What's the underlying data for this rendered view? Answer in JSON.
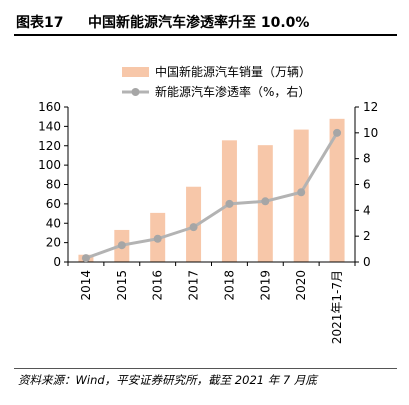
{
  "figure": {
    "label": "图表17",
    "title": "中国新能源汽车渗透率升至 10.0%",
    "source": "资料来源：Wind，平安证券研究所，截至 2021 年 7 月底"
  },
  "colors": {
    "bar": "#f7c7a9",
    "line": "#b3b3b3",
    "marker": "#a6a6a6",
    "axis": "#000000"
  },
  "chart_data": {
    "type": "bar+line",
    "categories": [
      "2014",
      "2015",
      "2016",
      "2017",
      "2018",
      "2019",
      "2020",
      "2021年1-7月"
    ],
    "series": [
      {
        "name": "中国新能源汽车销量（万辆）",
        "type": "bar",
        "axis": "left",
        "values": [
          7.5,
          33.1,
          50.7,
          77.7,
          125.6,
          120.6,
          136.7,
          147.8
        ]
      },
      {
        "name": "新能源汽车渗透率（%，右）",
        "type": "line",
        "axis": "right",
        "values": [
          0.3,
          1.3,
          1.8,
          2.7,
          4.5,
          4.7,
          5.4,
          10.0
        ]
      }
    ],
    "ylim_left": [
      0,
      160
    ],
    "yticks_left": [
      0,
      20,
      40,
      60,
      80,
      100,
      120,
      140,
      160
    ],
    "ylim_right": [
      0,
      12
    ],
    "yticks_right": [
      0,
      2,
      4,
      6,
      8,
      10,
      12
    ],
    "grid": false,
    "legend_position": "top-center"
  }
}
